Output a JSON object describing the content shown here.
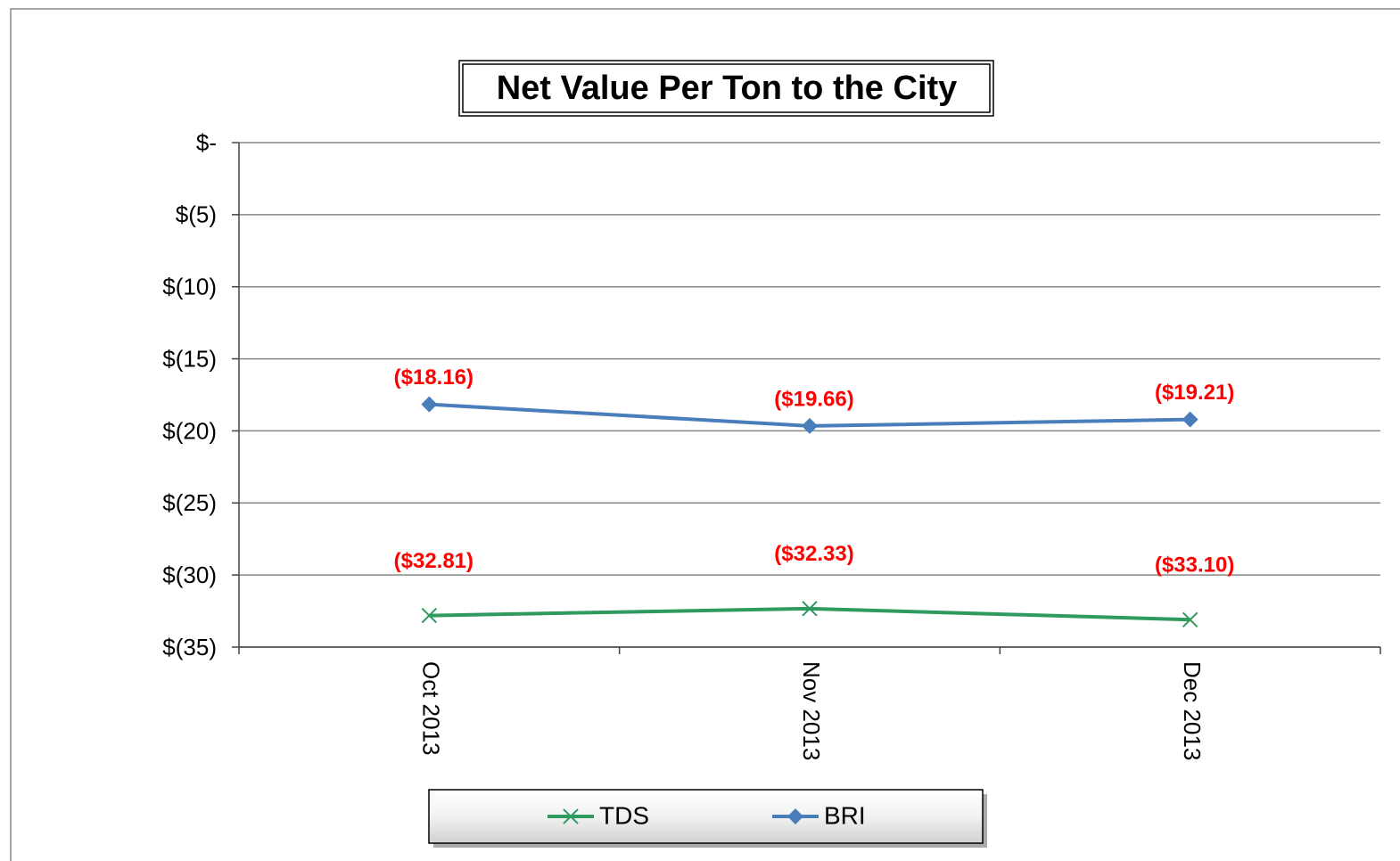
{
  "chart_data": {
    "type": "line",
    "title": "Net Value Per Ton to the City",
    "categories": [
      "Oct 2013",
      "Nov 2013",
      "Dec 2013"
    ],
    "series": [
      {
        "name": "TDS",
        "color": "#2e9a5e",
        "marker": "x",
        "values": [
          -32.81,
          -32.33,
          -33.1
        ],
        "value_labels": [
          "($32.81)",
          "($32.33)",
          "($33.10)"
        ]
      },
      {
        "name": "BRI",
        "color": "#4a7ebb",
        "marker": "diamond",
        "values": [
          -18.16,
          -19.66,
          -19.21
        ],
        "value_labels": [
          "($18.16)",
          "($19.66)",
          "($19.21)"
        ]
      }
    ],
    "ylim": [
      -35,
      0
    ],
    "yticks": [
      {
        "value": 0,
        "label": "$-"
      },
      {
        "value": -5,
        "label": "$(5)"
      },
      {
        "value": -10,
        "label": "$(10)"
      },
      {
        "value": -15,
        "label": "$(15)"
      },
      {
        "value": -20,
        "label": "$(20)"
      },
      {
        "value": -25,
        "label": "$(25)"
      },
      {
        "value": -30,
        "label": "$(30)"
      },
      {
        "value": -35,
        "label": "$(35)"
      }
    ],
    "grid": true,
    "legend": "bottom",
    "value_label_color": "#ff0000"
  }
}
